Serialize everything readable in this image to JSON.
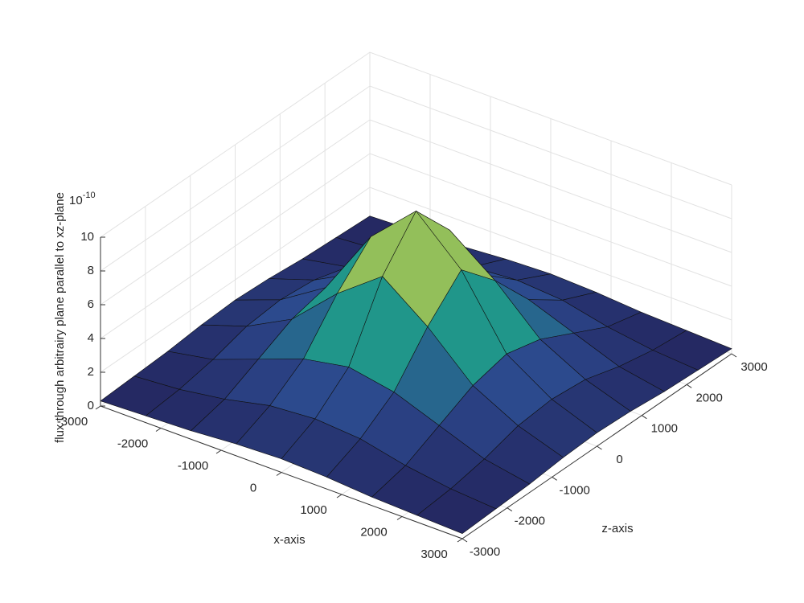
{
  "chart_data": {
    "type": "surface",
    "xlabel": "x-axis",
    "zlabel": "z-axis",
    "vlabel": "flux through arbitrairy plane parallel to xz-plane",
    "exponent": {
      "base": "10",
      "power": "-10"
    },
    "x": [
      -3000,
      -2250,
      -1500,
      -750,
      0,
      750,
      1500,
      2250,
      3000
    ],
    "z": [
      -3000,
      -2250,
      -1500,
      -750,
      0,
      750,
      1500,
      2250,
      3000
    ],
    "values": [
      [
        0.3,
        0.4,
        0.5,
        0.7,
        0.8,
        0.7,
        0.5,
        0.4,
        0.3
      ],
      [
        0.4,
        0.6,
        1,
        1.6,
        1.8,
        1.6,
        1,
        0.6,
        0.4
      ],
      [
        0.5,
        1,
        2,
        3,
        3.5,
        3,
        2,
        1,
        0.5
      ],
      [
        0.7,
        1.6,
        3,
        5.5,
        7.5,
        5.5,
        3,
        1.6,
        0.7
      ],
      [
        0.8,
        1.8,
        3.5,
        7.5,
        10,
        7.5,
        3.5,
        1.8,
        0.8
      ],
      [
        0.7,
        1.6,
        3,
        5.5,
        7.5,
        5.5,
        3,
        1.6,
        0.7
      ],
      [
        0.5,
        1,
        2,
        3,
        3.5,
        3,
        2,
        1,
        0.5
      ],
      [
        0.4,
        0.6,
        1,
        1.6,
        1.8,
        1.6,
        1,
        0.6,
        0.4
      ],
      [
        0.3,
        0.4,
        0.5,
        0.7,
        0.8,
        0.7,
        0.5,
        0.4,
        0.3
      ]
    ],
    "colormap": [
      "#23225a",
      "#2c4a8e",
      "#1f9a8a",
      "#8fbf5a",
      "#e8c060"
    ],
    "xlim": [
      -3000,
      3000
    ],
    "xticks": [
      -3000,
      -2000,
      -1000,
      0,
      1000,
      2000,
      3000
    ],
    "zlim": [
      -3000,
      3000
    ],
    "zticks": [
      -3000,
      -2000,
      -1000,
      0,
      1000,
      2000,
      3000
    ],
    "vlim": [
      0,
      10
    ],
    "vticks": [
      0,
      2,
      4,
      6,
      8,
      10
    ],
    "grid": true
  }
}
